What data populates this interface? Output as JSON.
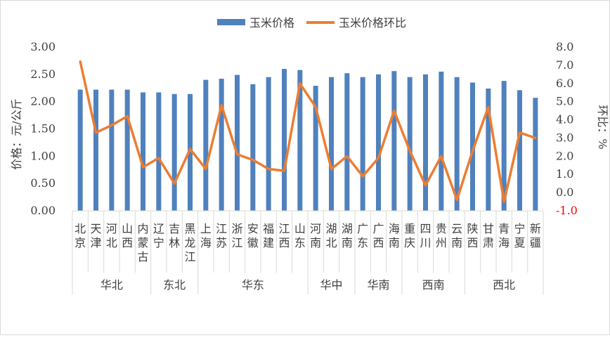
{
  "chart_data": {
    "type": "bar",
    "legend": {
      "placement": "top-center"
    },
    "series": [
      {
        "name": "玉米价格",
        "type": "bar",
        "axis": "left",
        "color": "#4F81BD",
        "values": [
          2.22,
          2.22,
          2.22,
          2.22,
          2.17,
          2.17,
          2.14,
          2.14,
          2.4,
          2.42,
          2.49,
          2.32,
          2.45,
          2.6,
          2.58,
          2.29,
          2.45,
          2.52,
          2.45,
          2.5,
          2.56,
          2.45,
          2.5,
          2.55,
          2.45,
          2.35,
          2.24,
          2.38,
          2.21,
          2.07
        ]
      },
      {
        "name": "玉米价格环比",
        "type": "line",
        "axis": "right",
        "color": "#ED7D31",
        "values": [
          7.2,
          3.3,
          3.7,
          4.2,
          1.4,
          1.9,
          0.5,
          2.4,
          1.3,
          4.8,
          2.1,
          1.8,
          1.3,
          1.2,
          6.0,
          4.7,
          1.3,
          2.0,
          0.9,
          1.9,
          4.5,
          2.3,
          0.4,
          2.0,
          -0.4,
          2.3,
          4.7,
          -0.5,
          3.3,
          3.0
        ]
      }
    ],
    "categories": [
      "北京",
      "天津",
      "河北",
      "山西",
      "内蒙古",
      "辽宁",
      "吉林",
      "黑龙江",
      "上海",
      "江苏",
      "浙江",
      "安徽",
      "福建",
      "江西",
      "山东",
      "河南",
      "湖北",
      "湖南",
      "广东",
      "广西",
      "海南",
      "重庆",
      "四川",
      "贵州",
      "云南",
      "陕西",
      "甘肃",
      "青海",
      "宁夏",
      "新疆"
    ],
    "category_labels": [
      "北\n京",
      "天\n津",
      "河\n北",
      "山\n西",
      "内\n蒙\n古",
      "辽\n宁",
      "吉\n林",
      "黑\n龙\n江",
      "上\n海",
      "江\n苏",
      "浙\n江",
      "安\n徽",
      "福\n建",
      "江\n西",
      "山\n东",
      "河\n南",
      "湖\n北",
      "湖\n南",
      "广\n东",
      "广\n西",
      "海\n南",
      "重\n庆",
      "四\n川",
      "贵\n州",
      "云\n南",
      "陕\n西",
      "甘\n肃",
      "青\n海",
      "宁\n夏",
      "新\n疆"
    ],
    "groups": [
      {
        "label": "华北",
        "count": 5
      },
      {
        "label": "东北",
        "count": 3
      },
      {
        "label": "华东",
        "count": 7
      },
      {
        "label": "华中",
        "count": 3
      },
      {
        "label": "华南",
        "count": 3
      },
      {
        "label": "西南",
        "count": 4
      },
      {
        "label": "西北",
        "count": 5
      }
    ],
    "y_left": {
      "label": "价格：元/公斤",
      "ylim": [
        0,
        3
      ],
      "ticks": [
        "0.00",
        "0.50",
        "1.00",
        "1.50",
        "2.00",
        "2.50",
        "3.00"
      ]
    },
    "y_right": {
      "label": "环比：%",
      "ylim": [
        -1,
        8
      ],
      "ticks": [
        "-1.0",
        "0.0",
        "1.0",
        "2.0",
        "3.0",
        "4.0",
        "5.0",
        "6.0",
        "7.0",
        "8.0"
      ],
      "negative_tick_color": "#FF0000"
    },
    "grid": false
  }
}
